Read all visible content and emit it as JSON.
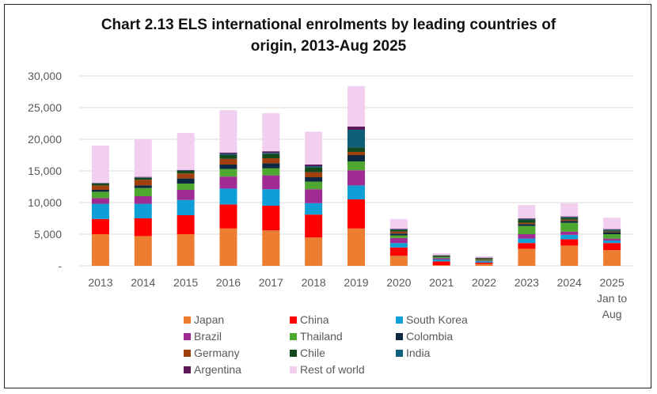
{
  "chart_data": {
    "type": "bar",
    "stacked": true,
    "title": "Chart 2.13  ELS international enrolments by leading countries of origin, 2013-Aug 2025",
    "title_lines": [
      "Chart 2.13  ELS international enrolments by leading countries of",
      "origin, 2013-Aug 2025"
    ],
    "xlabel": "",
    "ylabel": "",
    "ylim": [
      0,
      30000
    ],
    "yticks": [
      0,
      5000,
      10000,
      15000,
      20000,
      25000,
      30000
    ],
    "ytick_labels": [
      "-",
      "5,000",
      "10,000",
      "15,000",
      "20,000",
      "25,000",
      "30,000"
    ],
    "grid": true,
    "legend_position": "bottom",
    "categories": [
      "2013",
      "2014",
      "2015",
      "2016",
      "2017",
      "2018",
      "2019",
      "2020",
      "2021",
      "2022",
      "2023",
      "2024",
      "2025 Jan to Aug"
    ],
    "category_label_lines": [
      [
        "2013"
      ],
      [
        "2014"
      ],
      [
        "2015"
      ],
      [
        "2016"
      ],
      [
        "2017"
      ],
      [
        "2018"
      ],
      [
        "2019"
      ],
      [
        "2020"
      ],
      [
        "2021"
      ],
      [
        "2022"
      ],
      [
        "2023"
      ],
      [
        "2024"
      ],
      [
        "2025",
        "Jan to",
        "Aug"
      ]
    ],
    "series": [
      {
        "name": "Japan",
        "color": "#ED7D31",
        "values": [
          5000,
          4700,
          5000,
          5900,
          5600,
          4500,
          5900,
          1600,
          100,
          300,
          2700,
          3200,
          2500
        ]
      },
      {
        "name": "China",
        "color": "#FF0000",
        "values": [
          2400,
          2800,
          3000,
          3800,
          3900,
          3600,
          4600,
          1300,
          600,
          200,
          900,
          1000,
          1100
        ]
      },
      {
        "name": "South Korea",
        "color": "#0F9ED5",
        "values": [
          2400,
          2300,
          2400,
          2500,
          2600,
          1800,
          2200,
          700,
          300,
          200,
          700,
          700,
          400
        ]
      },
      {
        "name": "Brazil",
        "color": "#A02B93",
        "values": [
          900,
          1200,
          1600,
          1900,
          2200,
          2200,
          2400,
          800,
          200,
          100,
          700,
          500,
          300
        ]
      },
      {
        "name": "Thailand",
        "color": "#4EA72E",
        "values": [
          1000,
          1300,
          1000,
          1200,
          1100,
          1200,
          1400,
          400,
          200,
          150,
          1300,
          1400,
          700
        ]
      },
      {
        "name": "Colombia",
        "color": "#0E2841",
        "values": [
          300,
          400,
          800,
          700,
          800,
          700,
          1000,
          300,
          100,
          100,
          300,
          300,
          300
        ]
      },
      {
        "name": "Germany",
        "color": "#A0400F",
        "values": [
          700,
          900,
          800,
          900,
          800,
          800,
          500,
          300,
          50,
          100,
          200,
          200,
          100
        ]
      },
      {
        "name": "Chile",
        "color": "#124A1E",
        "values": [
          300,
          300,
          400,
          600,
          700,
          800,
          700,
          300,
          100,
          100,
          500,
          300,
          200
        ]
      },
      {
        "name": "India",
        "color": "#0E607A",
        "values": [
          50,
          50,
          50,
          200,
          150,
          150,
          2800,
          50,
          30,
          30,
          100,
          100,
          100
        ]
      },
      {
        "name": "Argentina",
        "color": "#5C1A5A",
        "values": [
          50,
          100,
          100,
          200,
          250,
          250,
          500,
          100,
          20,
          20,
          100,
          100,
          100
        ]
      },
      {
        "name": "Rest of world",
        "color": "#F2CEEF",
        "values": [
          5900,
          5950,
          5850,
          6700,
          6000,
          5200,
          6400,
          1550,
          300,
          200,
          2100,
          2100,
          1800
        ]
      }
    ]
  }
}
